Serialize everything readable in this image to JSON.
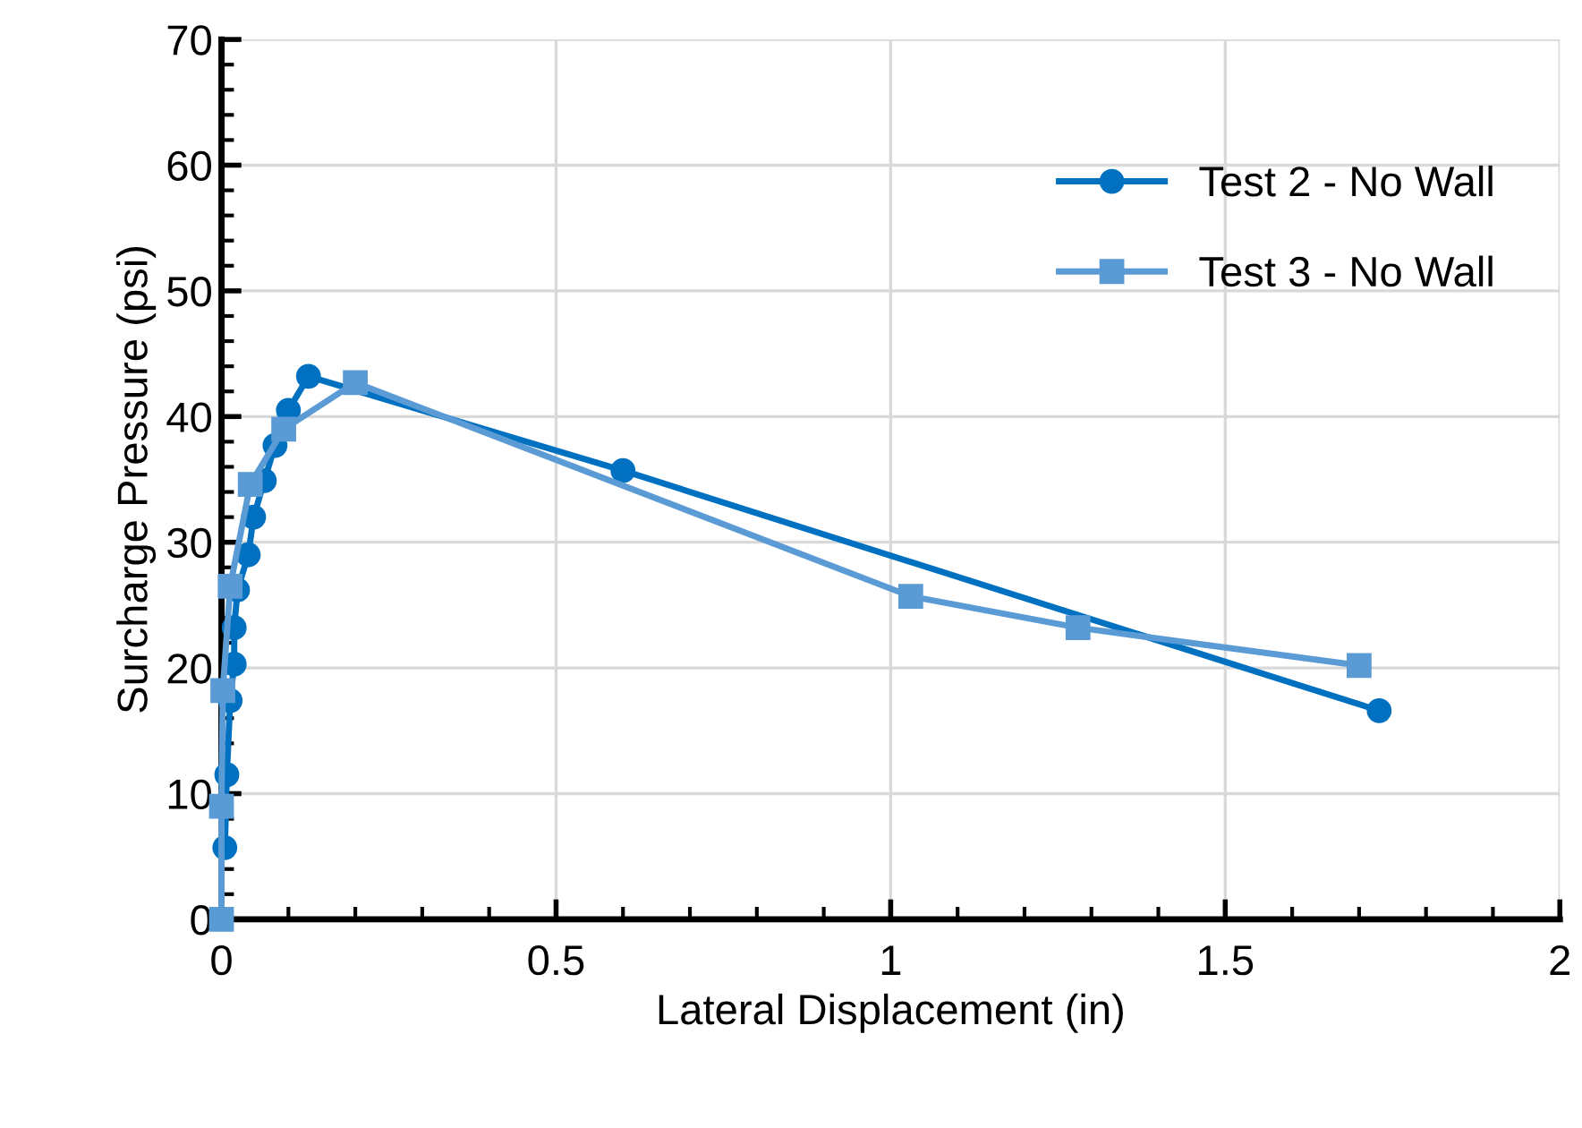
{
  "chart_data": {
    "type": "line",
    "xlabel": "Lateral Displacement (in)",
    "ylabel": "Surcharge Pressure (psi)",
    "xlim": [
      0,
      2
    ],
    "xticks": [
      0,
      0.5,
      1,
      1.5,
      2
    ],
    "ylim": [
      0,
      70
    ],
    "yticks": [
      0,
      10,
      20,
      30,
      40,
      50,
      60,
      70
    ],
    "grid": true,
    "legend": "top right",
    "series": [
      {
        "name": "Test 2 - No Wall",
        "color": "#0070c0",
        "marker": "circle",
        "x": [
          0.005,
          0.008,
          0.013,
          0.019,
          0.019,
          0.024,
          0.04,
          0.048,
          0.064,
          0.08,
          0.1,
          0.13,
          0.6,
          1.73
        ],
        "values": [
          5.7,
          11.5,
          17.4,
          20.3,
          23.2,
          26.2,
          29.0,
          32.0,
          34.9,
          37.7,
          40.5,
          43.2,
          35.7,
          16.6
        ]
      },
      {
        "name": "Test 3 - No Wall",
        "color": "#5b9bd5",
        "marker": "square",
        "x": [
          0,
          0,
          0.002,
          0.013,
          0.043,
          0.093,
          0.2,
          1.03,
          1.28,
          1.7
        ],
        "values": [
          0,
          9.0,
          18.2,
          26.5,
          34.6,
          39.0,
          42.7,
          25.7,
          23.2,
          20.2
        ]
      }
    ]
  }
}
